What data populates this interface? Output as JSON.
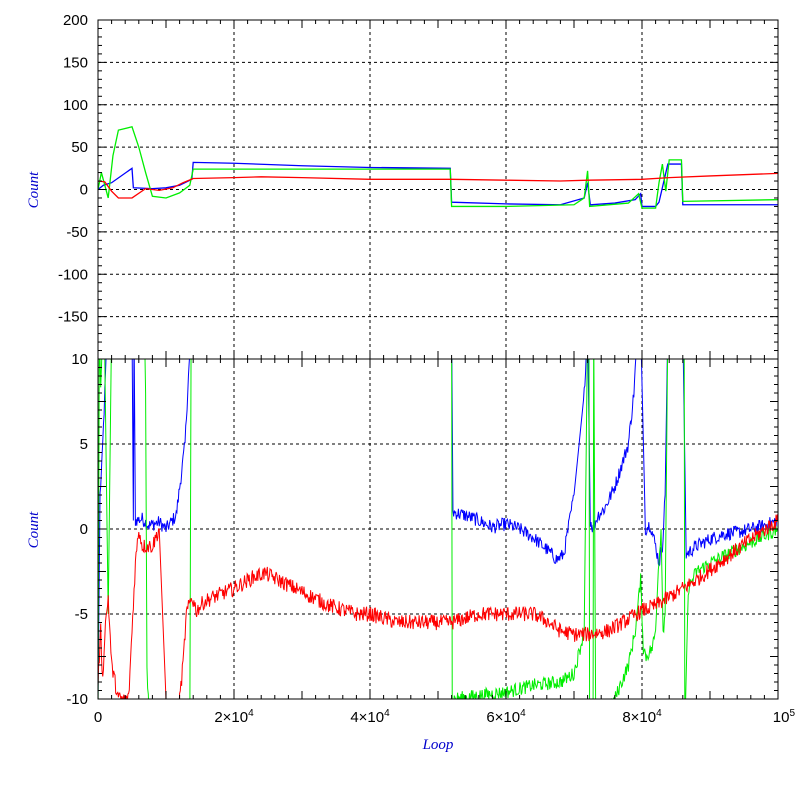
{
  "chart_data": [
    {
      "type": "line",
      "title": "",
      "xlabel": "",
      "ylabel": "Count",
      "xlim": [
        0,
        100000
      ],
      "ylim": [
        -200,
        200
      ],
      "yticks": [
        -150,
        -100,
        -50,
        0,
        50,
        100,
        150,
        200
      ],
      "ytick_labels": [
        "-150",
        "-100",
        "-50",
        "0",
        "50",
        "100",
        "150",
        "200"
      ],
      "grid": true,
      "series": [
        {
          "color": "#0000ff",
          "x": [
            0,
            800,
            2000,
            5000,
            5200,
            8000,
            10000,
            12000,
            13800,
            14000,
            20000,
            30000,
            40000,
            51800,
            52000,
            60000,
            68000,
            71500,
            72000,
            72400,
            76000,
            79000,
            79800,
            80000,
            82000,
            82500,
            83800,
            84000,
            85800,
            86000,
            100000
          ],
          "y": [
            0,
            5,
            8,
            25,
            2,
            1,
            2,
            5,
            12,
            32,
            31,
            28,
            26,
            25,
            -15,
            -17,
            -18,
            -10,
            8,
            -18,
            -16,
            -12,
            -5,
            -20,
            -20,
            -15,
            30,
            30,
            30,
            -18,
            -18
          ]
        },
        {
          "color": "#00ee00",
          "x": [
            0,
            500,
            1500,
            2200,
            3000,
            5000,
            6000,
            7000,
            8000,
            10000,
            12000,
            13500,
            14000,
            30000,
            51800,
            52000,
            60000,
            70000,
            71500,
            72000,
            72300,
            78000,
            79500,
            80000,
            82000,
            82500,
            83000,
            83500,
            84000,
            85800,
            86000,
            100000
          ],
          "y": [
            0,
            20,
            -10,
            40,
            70,
            74,
            50,
            20,
            -8,
            -10,
            -4,
            5,
            24,
            24,
            24,
            -20,
            -20,
            -18,
            -10,
            22,
            -20,
            -16,
            -5,
            -22,
            -22,
            8,
            30,
            -2,
            35,
            35,
            -14,
            -12
          ]
        },
        {
          "color": "#ff0000",
          "x": [
            0,
            1000,
            2000,
            3000,
            5000,
            7000,
            9000,
            11000,
            12500,
            14000,
            20000,
            24000,
            30000,
            40000,
            52000,
            60000,
            68000,
            72000,
            80000,
            84000,
            90000,
            100000
          ],
          "y": [
            10,
            9,
            -2,
            -10,
            -10,
            1,
            -1,
            2,
            8,
            13,
            14,
            15,
            14,
            12,
            12,
            11,
            10,
            11,
            12,
            14,
            16,
            19
          ]
        }
      ]
    },
    {
      "type": "line",
      "title": "",
      "xlabel": "Loop",
      "ylabel": "Count",
      "xlim": [
        0,
        100000
      ],
      "ylim": [
        -10,
        10
      ],
      "yticks": [
        -10,
        -5,
        0,
        5,
        10
      ],
      "ytick_labels": [
        "-10",
        "-5",
        "0",
        "5",
        "10"
      ],
      "xticks": [
        0,
        20000,
        40000,
        60000,
        80000,
        100000
      ],
      "xtick_labels": [
        {
          "base": "0",
          "exp": ""
        },
        {
          "base": "2×10",
          "exp": "4"
        },
        {
          "base": "4×10",
          "exp": "4"
        },
        {
          "base": "6×10",
          "exp": "4"
        },
        {
          "base": "8×10",
          "exp": "4"
        },
        {
          "base": "10",
          "exp": "5"
        }
      ],
      "grid": true,
      "series": [
        {
          "color": "#0000ff",
          "noise": 0.4,
          "x": [
            0,
            300,
            600,
            900,
            1200,
            1600,
            2000,
            2600,
            3000,
            5000,
            5200,
            5300,
            5500,
            6500,
            7500,
            9000,
            10000,
            11500,
            12800,
            13300,
            13800,
            52000,
            52200,
            54000,
            56000,
            58000,
            60000,
            62000,
            64000,
            66000,
            67500,
            68500,
            70000,
            71500,
            72000,
            72400,
            72800,
            73500,
            74500,
            76000,
            78000,
            78800,
            79400,
            79800,
            80500,
            81200,
            82000,
            82500,
            83000,
            83400,
            83800,
            84400,
            85000,
            85500,
            86000,
            86500,
            88000,
            90000,
            92000,
            94000,
            96000,
            98000,
            100000
          ],
          "y": [
            -10,
            2,
            4,
            7,
            10,
            12,
            12,
            12,
            12,
            12,
            0.5,
            12,
            0.5,
            0.6,
            0.2,
            0.4,
            0,
            0.8,
            5,
            9,
            12,
            12,
            1,
            0.8,
            0.5,
            0.1,
            0.3,
            0,
            -0.5,
            -1.2,
            -1.8,
            -1.5,
            2,
            8,
            12,
            0.5,
            0,
            0.8,
            1.2,
            2.5,
            5,
            8,
            12,
            12,
            0,
            0.3,
            -1,
            -2,
            -1,
            2,
            12,
            12,
            12,
            12,
            12,
            -1.5,
            -1,
            -0.6,
            -0.3,
            -0.2,
            0,
            0.2,
            0.5
          ]
        },
        {
          "color": "#00ee00",
          "noise": 0.4,
          "x": [
            0,
            200,
            400,
            700,
            1000,
            1500,
            2000,
            2500,
            3000,
            3500,
            5500,
            6800,
            7000,
            7200,
            7600,
            8000,
            9500,
            10500,
            12000,
            13500,
            13700,
            14000,
            52000,
            52100,
            52200,
            56000,
            60000,
            64000,
            68000,
            70000,
            71500,
            72000,
            72200,
            72300,
            72800,
            72900,
            73200,
            76000,
            78000,
            79000,
            79800,
            80200,
            80600,
            81500,
            82000,
            82300,
            82800,
            83100,
            83400,
            83800,
            84100,
            84500,
            85500,
            86200,
            86300,
            86800,
            88000,
            90000,
            92000,
            94000,
            96000,
            98000,
            100000
          ],
          "y": [
            -12,
            12,
            8,
            12,
            10,
            -5,
            12,
            12,
            12,
            12,
            12,
            12,
            8,
            -8,
            -12,
            -12,
            -12,
            -12,
            -12,
            -12,
            12,
            12,
            12,
            -12,
            -10,
            -9.8,
            -9.6,
            -9.2,
            -9,
            -8.5,
            -6,
            12,
            12,
            -12,
            -12,
            12,
            -12,
            -10,
            -8,
            -6,
            -3,
            -7,
            -7.5,
            -7,
            -6,
            -3,
            0,
            -6,
            -5,
            12,
            12,
            12,
            12,
            12,
            -12,
            -3.5,
            -2.5,
            -2,
            -1.6,
            -1.2,
            -0.8,
            -0.4,
            0
          ]
        },
        {
          "color": "#ff0000",
          "noise": 0.45,
          "x": [
            0,
            400,
            700,
            1000,
            1500,
            2000,
            3000,
            4500,
            5000,
            5500,
            6000,
            6500,
            7000,
            7500,
            8000,
            9000,
            10000,
            11000,
            11500,
            12500,
            13000,
            13800,
            14500,
            15500,
            17000,
            20000,
            23000,
            24500,
            26000,
            30000,
            34000,
            38000,
            40000,
            44000,
            48000,
            52000,
            56000,
            60000,
            64000,
            66000,
            68000,
            70000,
            72000,
            75000,
            78000,
            80000,
            82000,
            84000,
            88000,
            92000,
            96000,
            100000
          ],
          "y": [
            -9,
            -6,
            -9,
            -6,
            -4,
            -8,
            -10,
            -10,
            -6,
            -2,
            0,
            -1,
            -1,
            -1,
            -1,
            0,
            -10,
            -12,
            -12,
            -8,
            -5,
            -4,
            -4.8,
            -4.3,
            -4,
            -3.5,
            -2.8,
            -2.6,
            -2.9,
            -3.7,
            -4.5,
            -5,
            -5,
            -5.5,
            -5.5,
            -5.5,
            -5,
            -5,
            -5,
            -5.4,
            -6,
            -6.2,
            -6.2,
            -6,
            -5.3,
            -4.8,
            -4.5,
            -4,
            -3,
            -1.8,
            -0.6,
            0.5
          ]
        }
      ]
    }
  ]
}
